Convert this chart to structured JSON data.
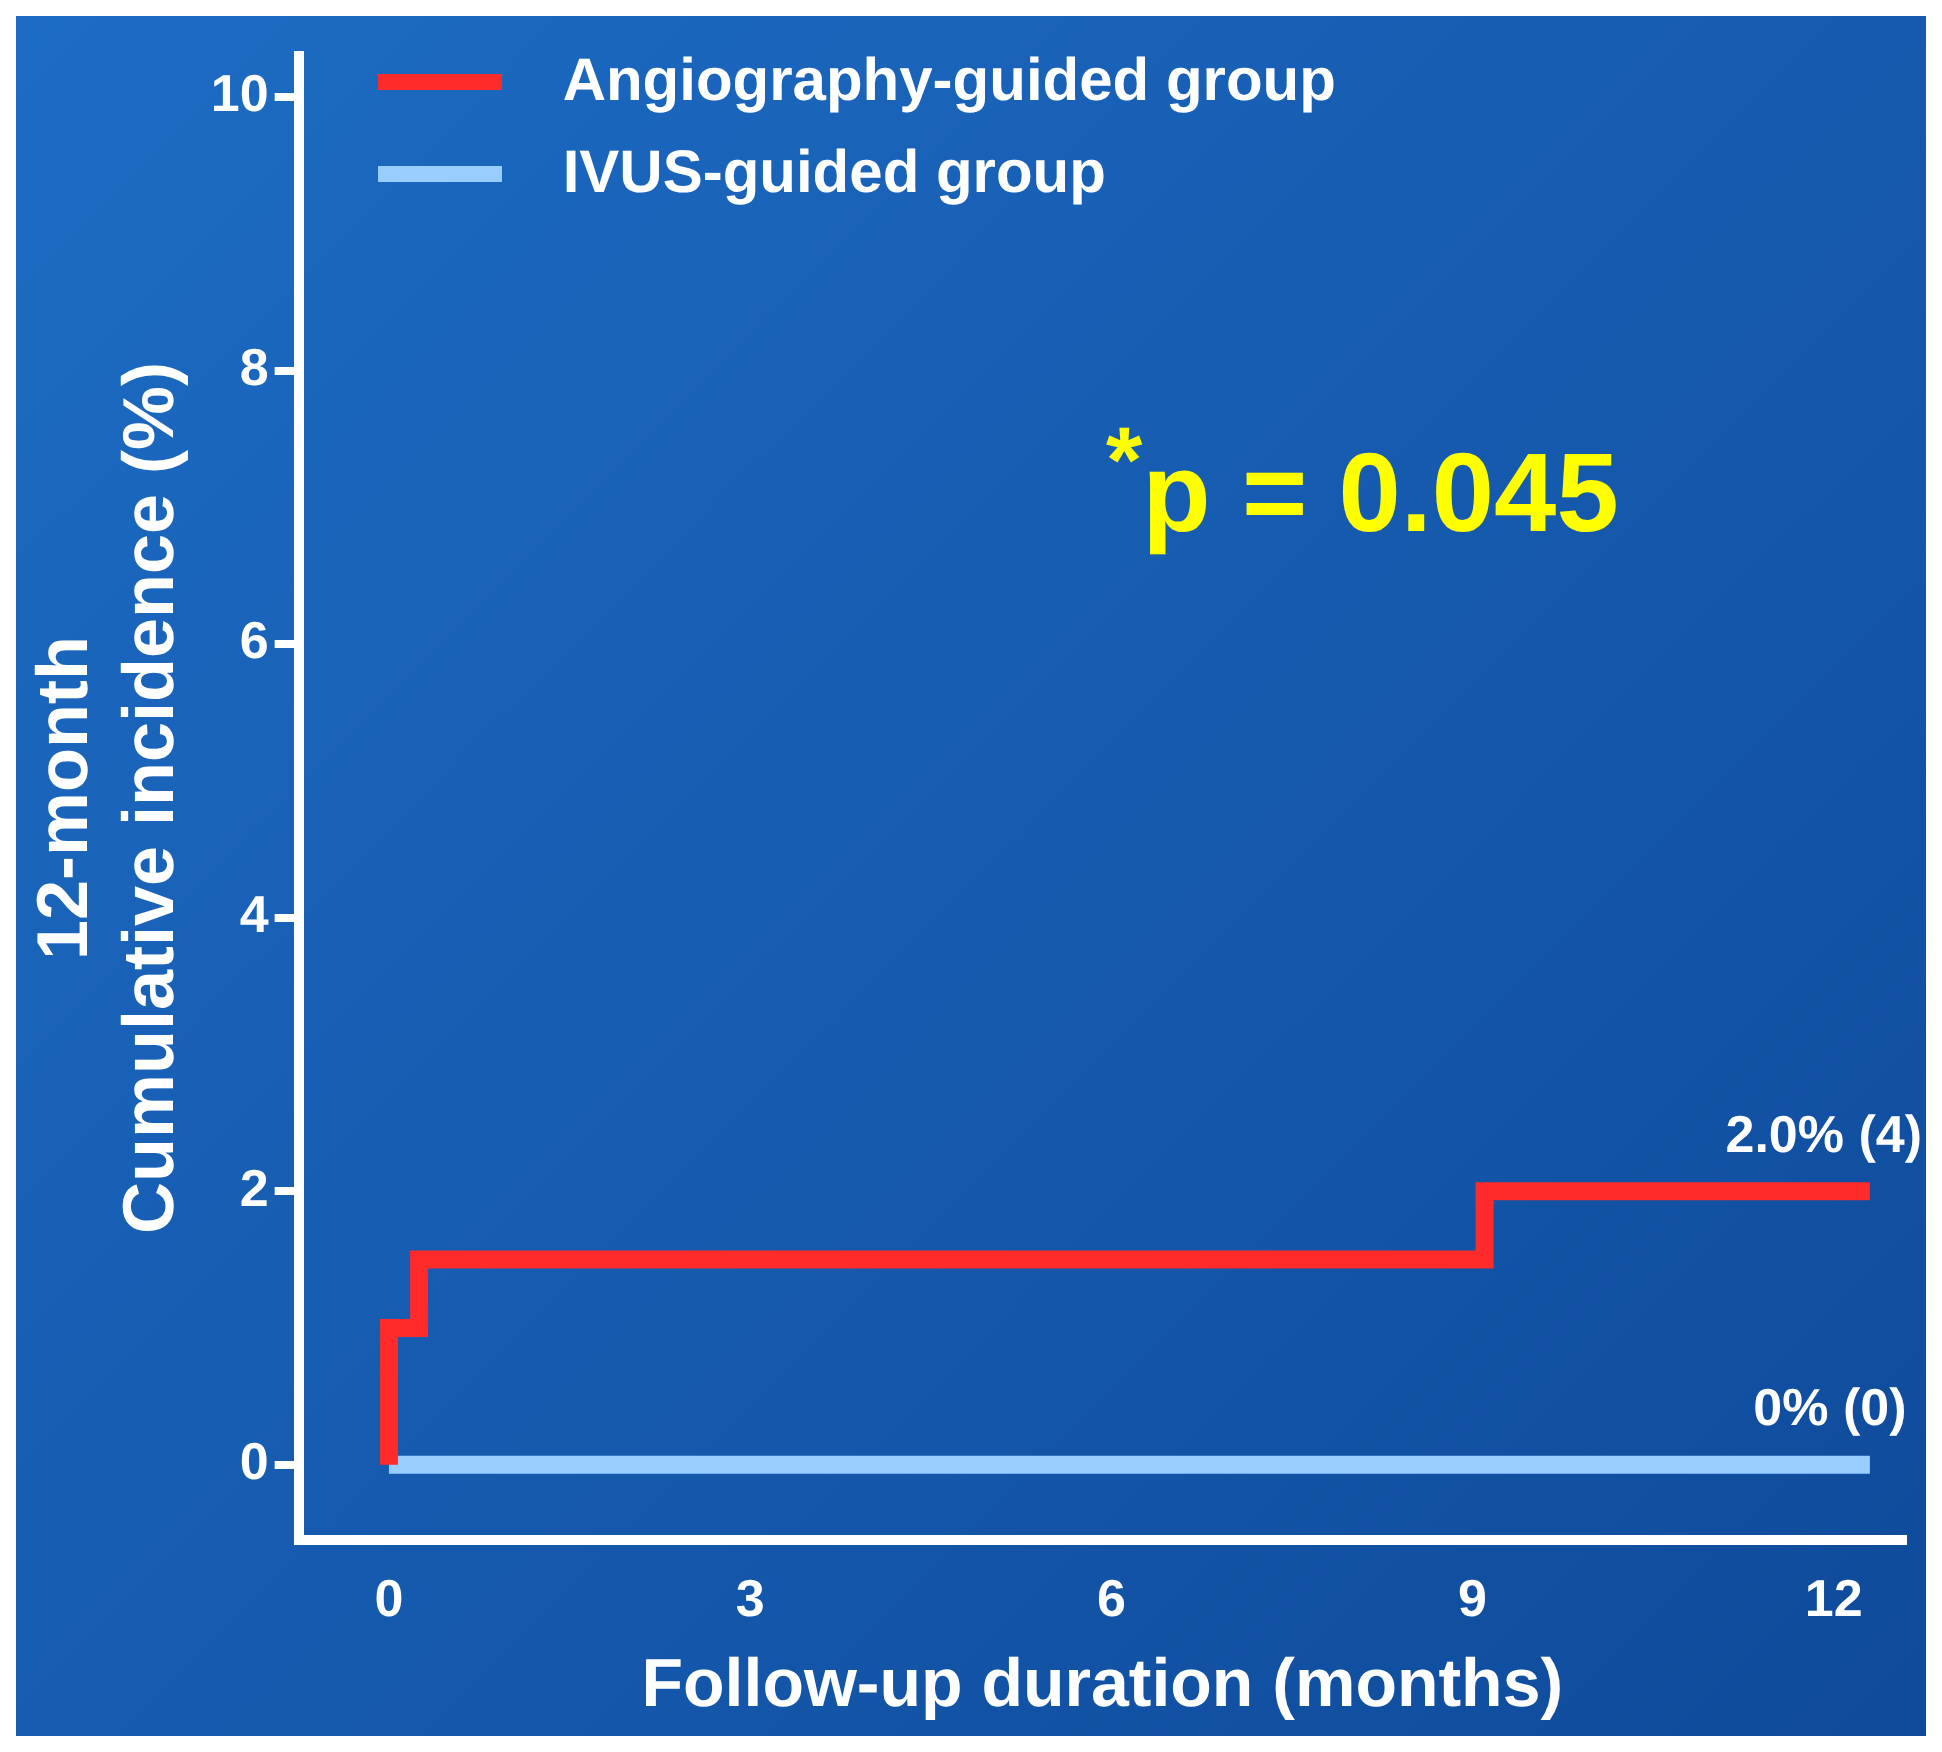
{
  "chart_data": {
    "type": "step",
    "xlabel": "Follow-up duration (months)",
    "ylabel": "12-month\nCumulative incidence (%)",
    "xlim": [
      -0.75,
      12.6
    ],
    "xticks": [
      0,
      3,
      6,
      9,
      12
    ],
    "ylim": [
      -0.55,
      10.3
    ],
    "yticks": [
      0,
      2,
      4,
      6,
      8,
      10
    ],
    "grid": false,
    "legend": "top left",
    "marker": "none",
    "line_style": "solid",
    "series": [
      {
        "name": "Angiography-guided group",
        "color": "#ff2a2a",
        "x": [
          0,
          0,
          0.25,
          9.1,
          12.3
        ],
        "values": [
          0,
          1.0,
          1.5,
          2.0,
          2.0
        ]
      },
      {
        "name": "IVUS-guided group",
        "color": "#99ccff",
        "x": [
          0,
          12.3
        ],
        "values": [
          0,
          0
        ]
      }
    ],
    "annotations": [
      "$^{*}$p = 0.045",
      {
        "text": "2.0% (4)",
        "x": 12.3,
        "y": 2.0
      },
      {
        "text": "0% (0)",
        "x": 12.3,
        "y": 0
      }
    ]
  }
}
